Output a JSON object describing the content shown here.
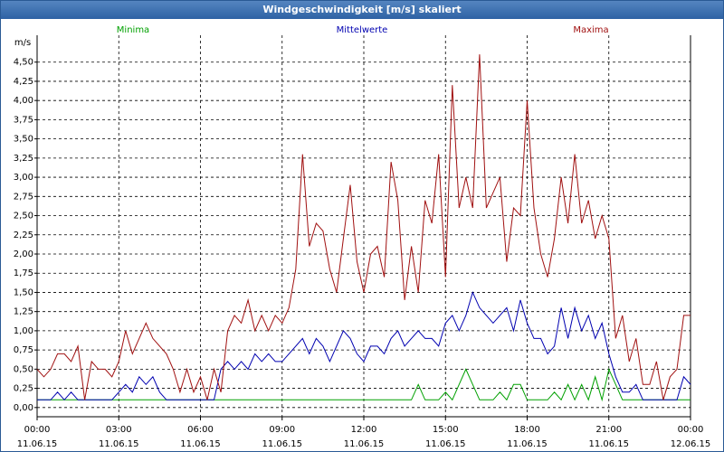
{
  "window_title": "Windgeschwindigkeit [m/s] skaliert",
  "chart_data": {
    "type": "line",
    "ylabel": "m/s",
    "grid": true,
    "xlim": [
      0,
      24
    ],
    "ylim": [
      -0.12,
      4.85
    ],
    "xticks": [
      {
        "value": 0,
        "label": "00:00",
        "date": "11.06.15"
      },
      {
        "value": 3,
        "label": "03:00",
        "date": "11.06.15"
      },
      {
        "value": 6,
        "label": "06:00",
        "date": "11.06.15"
      },
      {
        "value": 9,
        "label": "09:00",
        "date": "11.06.15"
      },
      {
        "value": 12,
        "label": "12:00",
        "date": "11.06.15"
      },
      {
        "value": 15,
        "label": "15:00",
        "date": "11.06.15"
      },
      {
        "value": 18,
        "label": "18:00",
        "date": "11.06.15"
      },
      {
        "value": 21,
        "label": "21:00",
        "date": "11.06.15"
      },
      {
        "value": 24,
        "label": "00:00",
        "date": "12.06.15"
      }
    ],
    "yticks": [
      {
        "value": 0,
        "label": "0,00"
      },
      {
        "value": 0.25,
        "label": "0,25"
      },
      {
        "value": 0.5,
        "label": "0,50"
      },
      {
        "value": 0.75,
        "label": "0,75"
      },
      {
        "value": 1,
        "label": "1,00"
      },
      {
        "value": 1.25,
        "label": "1,25"
      },
      {
        "value": 1.5,
        "label": "1,50"
      },
      {
        "value": 1.75,
        "label": "1,75"
      },
      {
        "value": 2,
        "label": "2,00"
      },
      {
        "value": 2.25,
        "label": "2,25"
      },
      {
        "value": 2.5,
        "label": "2,50"
      },
      {
        "value": 2.75,
        "label": "2,75"
      },
      {
        "value": 3,
        "label": "3,00"
      },
      {
        "value": 3.25,
        "label": "3,25"
      },
      {
        "value": 3.5,
        "label": "3,50"
      },
      {
        "value": 3.75,
        "label": "3,75"
      },
      {
        "value": 4,
        "label": "4,00"
      },
      {
        "value": 4.25,
        "label": "4,25"
      },
      {
        "value": 4.5,
        "label": "4,50"
      }
    ],
    "x": [
      0,
      0.25,
      0.5,
      0.75,
      1,
      1.25,
      1.5,
      1.75,
      2,
      2.25,
      2.5,
      2.75,
      3,
      3.25,
      3.5,
      3.75,
      4,
      4.25,
      4.5,
      4.75,
      5,
      5.25,
      5.5,
      5.75,
      6,
      6.25,
      6.5,
      6.75,
      7,
      7.25,
      7.5,
      7.75,
      8,
      8.25,
      8.5,
      8.75,
      9,
      9.25,
      9.5,
      9.75,
      10,
      10.25,
      10.5,
      10.75,
      11,
      11.25,
      11.5,
      11.75,
      12,
      12.25,
      12.5,
      12.75,
      13,
      13.25,
      13.5,
      13.75,
      14,
      14.25,
      14.5,
      14.75,
      15,
      15.25,
      15.5,
      15.75,
      16,
      16.25,
      16.5,
      16.75,
      17,
      17.25,
      17.5,
      17.75,
      18,
      18.25,
      18.5,
      18.75,
      19,
      19.25,
      19.5,
      19.75,
      20,
      20.25,
      20.5,
      20.75,
      21,
      21.25,
      21.5,
      21.75,
      22,
      22.25,
      22.5,
      22.75,
      23,
      23.25,
      23.5,
      23.75,
      24
    ],
    "series": [
      {
        "name": "Minima",
        "color": "#00a000",
        "values": [
          0.1,
          0.1,
          0.1,
          0.1,
          0.1,
          0.1,
          0.1,
          0.1,
          0.1,
          0.1,
          0.1,
          0.1,
          0.1,
          0.1,
          0.1,
          0.1,
          0.1,
          0.1,
          0.1,
          0.1,
          0.1,
          0.1,
          0.1,
          0.1,
          0.1,
          0.1,
          0.1,
          0.1,
          0.1,
          0.1,
          0.1,
          0.1,
          0.1,
          0.1,
          0.1,
          0.1,
          0.1,
          0.1,
          0.1,
          0.1,
          0.1,
          0.1,
          0.1,
          0.1,
          0.1,
          0.1,
          0.1,
          0.1,
          0.1,
          0.1,
          0.1,
          0.1,
          0.1,
          0.1,
          0.1,
          0.1,
          0.3,
          0.1,
          0.1,
          0.1,
          0.2,
          0.1,
          0.3,
          0.5,
          0.3,
          0.1,
          0.1,
          0.1,
          0.2,
          0.1,
          0.3,
          0.3,
          0.1,
          0.1,
          0.1,
          0.1,
          0.2,
          0.1,
          0.3,
          0.1,
          0.3,
          0.1,
          0.4,
          0.1,
          0.5,
          0.3,
          0.1,
          0.1,
          0.1,
          0.1,
          0.1,
          0.1,
          0.1,
          0.1,
          0.1,
          0.1,
          0.1
        ]
      },
      {
        "name": "Mittelwerte",
        "color": "#0000b0",
        "values": [
          0.1,
          0.1,
          0.1,
          0.2,
          0.1,
          0.2,
          0.1,
          0.1,
          0.1,
          0.1,
          0.1,
          0.1,
          0.2,
          0.3,
          0.2,
          0.4,
          0.3,
          0.4,
          0.2,
          0.1,
          0.1,
          0.1,
          0.1,
          0.1,
          0.1,
          0.1,
          0.1,
          0.5,
          0.6,
          0.5,
          0.6,
          0.5,
          0.7,
          0.6,
          0.7,
          0.6,
          0.6,
          0.7,
          0.8,
          0.9,
          0.7,
          0.9,
          0.8,
          0.6,
          0.8,
          1.0,
          0.9,
          0.7,
          0.6,
          0.8,
          0.8,
          0.7,
          0.9,
          1.0,
          0.8,
          0.9,
          1.0,
          0.9,
          0.9,
          0.8,
          1.1,
          1.2,
          1.0,
          1.2,
          1.5,
          1.3,
          1.2,
          1.1,
          1.2,
          1.3,
          1.0,
          1.4,
          1.1,
          0.9,
          0.9,
          0.7,
          0.8,
          1.3,
          0.9,
          1.3,
          1.0,
          1.2,
          0.9,
          1.1,
          0.7,
          0.4,
          0.2,
          0.2,
          0.3,
          0.1,
          0.1,
          0.1,
          0.1,
          0.1,
          0.1,
          0.4,
          0.3
        ]
      },
      {
        "name": "Maxima",
        "color": "#a01010",
        "values": [
          0.5,
          0.4,
          0.5,
          0.7,
          0.7,
          0.6,
          0.8,
          0.1,
          0.6,
          0.5,
          0.5,
          0.4,
          0.6,
          1.0,
          0.7,
          0.9,
          1.1,
          0.9,
          0.8,
          0.7,
          0.5,
          0.2,
          0.5,
          0.2,
          0.4,
          0.1,
          0.5,
          0.2,
          1.0,
          1.2,
          1.1,
          1.4,
          1.0,
          1.2,
          1.0,
          1.2,
          1.1,
          1.3,
          1.8,
          3.3,
          2.1,
          2.4,
          2.3,
          1.8,
          1.5,
          2.2,
          2.9,
          1.9,
          1.5,
          2.0,
          2.1,
          1.7,
          3.2,
          2.7,
          1.4,
          2.1,
          1.5,
          2.7,
          2.4,
          3.3,
          1.7,
          4.2,
          2.6,
          3.0,
          2.6,
          4.6,
          2.6,
          2.8,
          3.0,
          1.9,
          2.6,
          2.5,
          4.0,
          2.6,
          2.0,
          1.7,
          2.2,
          3.0,
          2.4,
          3.3,
          2.4,
          2.7,
          2.2,
          2.5,
          2.2,
          0.9,
          1.2,
          0.6,
          0.9,
          0.3,
          0.3,
          0.6,
          0.1,
          0.4,
          0.5,
          1.2,
          1.2
        ]
      }
    ]
  }
}
